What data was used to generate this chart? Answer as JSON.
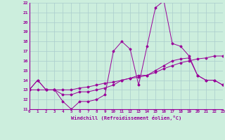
{
  "xlabel": "Windchill (Refroidissement éolien,°C)",
  "background_color": "#cceedd",
  "grid_color": "#aacccc",
  "line_color": "#990099",
  "xlim": [
    0,
    23
  ],
  "ylim": [
    11,
    22
  ],
  "xticks": [
    0,
    1,
    2,
    3,
    4,
    5,
    6,
    7,
    8,
    9,
    10,
    11,
    12,
    13,
    14,
    15,
    16,
    17,
    18,
    19,
    20,
    21,
    22,
    23
  ],
  "yticks": [
    11,
    12,
    13,
    14,
    15,
    16,
    17,
    18,
    19,
    20,
    21,
    22
  ],
  "line_top_x": [
    0,
    1,
    2,
    3,
    4,
    5,
    6,
    7,
    8,
    9,
    10,
    11,
    12,
    13,
    14,
    15,
    16,
    17,
    18,
    19,
    20,
    21,
    22,
    23
  ],
  "line_top_y": [
    13.0,
    14.0,
    13.0,
    13.0,
    11.8,
    11.0,
    11.8,
    11.8,
    12.0,
    12.5,
    17.0,
    18.0,
    17.2,
    13.5,
    17.5,
    21.5,
    22.2,
    17.8,
    17.5,
    16.5,
    14.5,
    14.0,
    14.0,
    13.5
  ],
  "line_mid_x": [
    0,
    1,
    2,
    3,
    4,
    5,
    6,
    7,
    8,
    9,
    10,
    11,
    12,
    13,
    14,
    15,
    16,
    17,
    18,
    19,
    20,
    21,
    22,
    23
  ],
  "line_mid_y": [
    13.0,
    14.0,
    13.0,
    13.0,
    12.5,
    12.5,
    12.8,
    12.8,
    13.0,
    13.2,
    13.5,
    14.0,
    14.2,
    14.5,
    14.5,
    15.0,
    15.5,
    16.0,
    16.2,
    16.3,
    14.5,
    14.0,
    14.0,
    13.5
  ],
  "line_bot_x": [
    0,
    1,
    2,
    3,
    4,
    5,
    6,
    7,
    8,
    9,
    10,
    11,
    12,
    13,
    14,
    15,
    16,
    17,
    18,
    19,
    20,
    21,
    22,
    23
  ],
  "line_bot_y": [
    13.0,
    13.0,
    13.0,
    13.0,
    13.0,
    13.0,
    13.2,
    13.3,
    13.5,
    13.7,
    13.8,
    14.0,
    14.2,
    14.3,
    14.5,
    14.8,
    15.2,
    15.5,
    15.8,
    16.0,
    16.2,
    16.3,
    16.5,
    16.5
  ]
}
